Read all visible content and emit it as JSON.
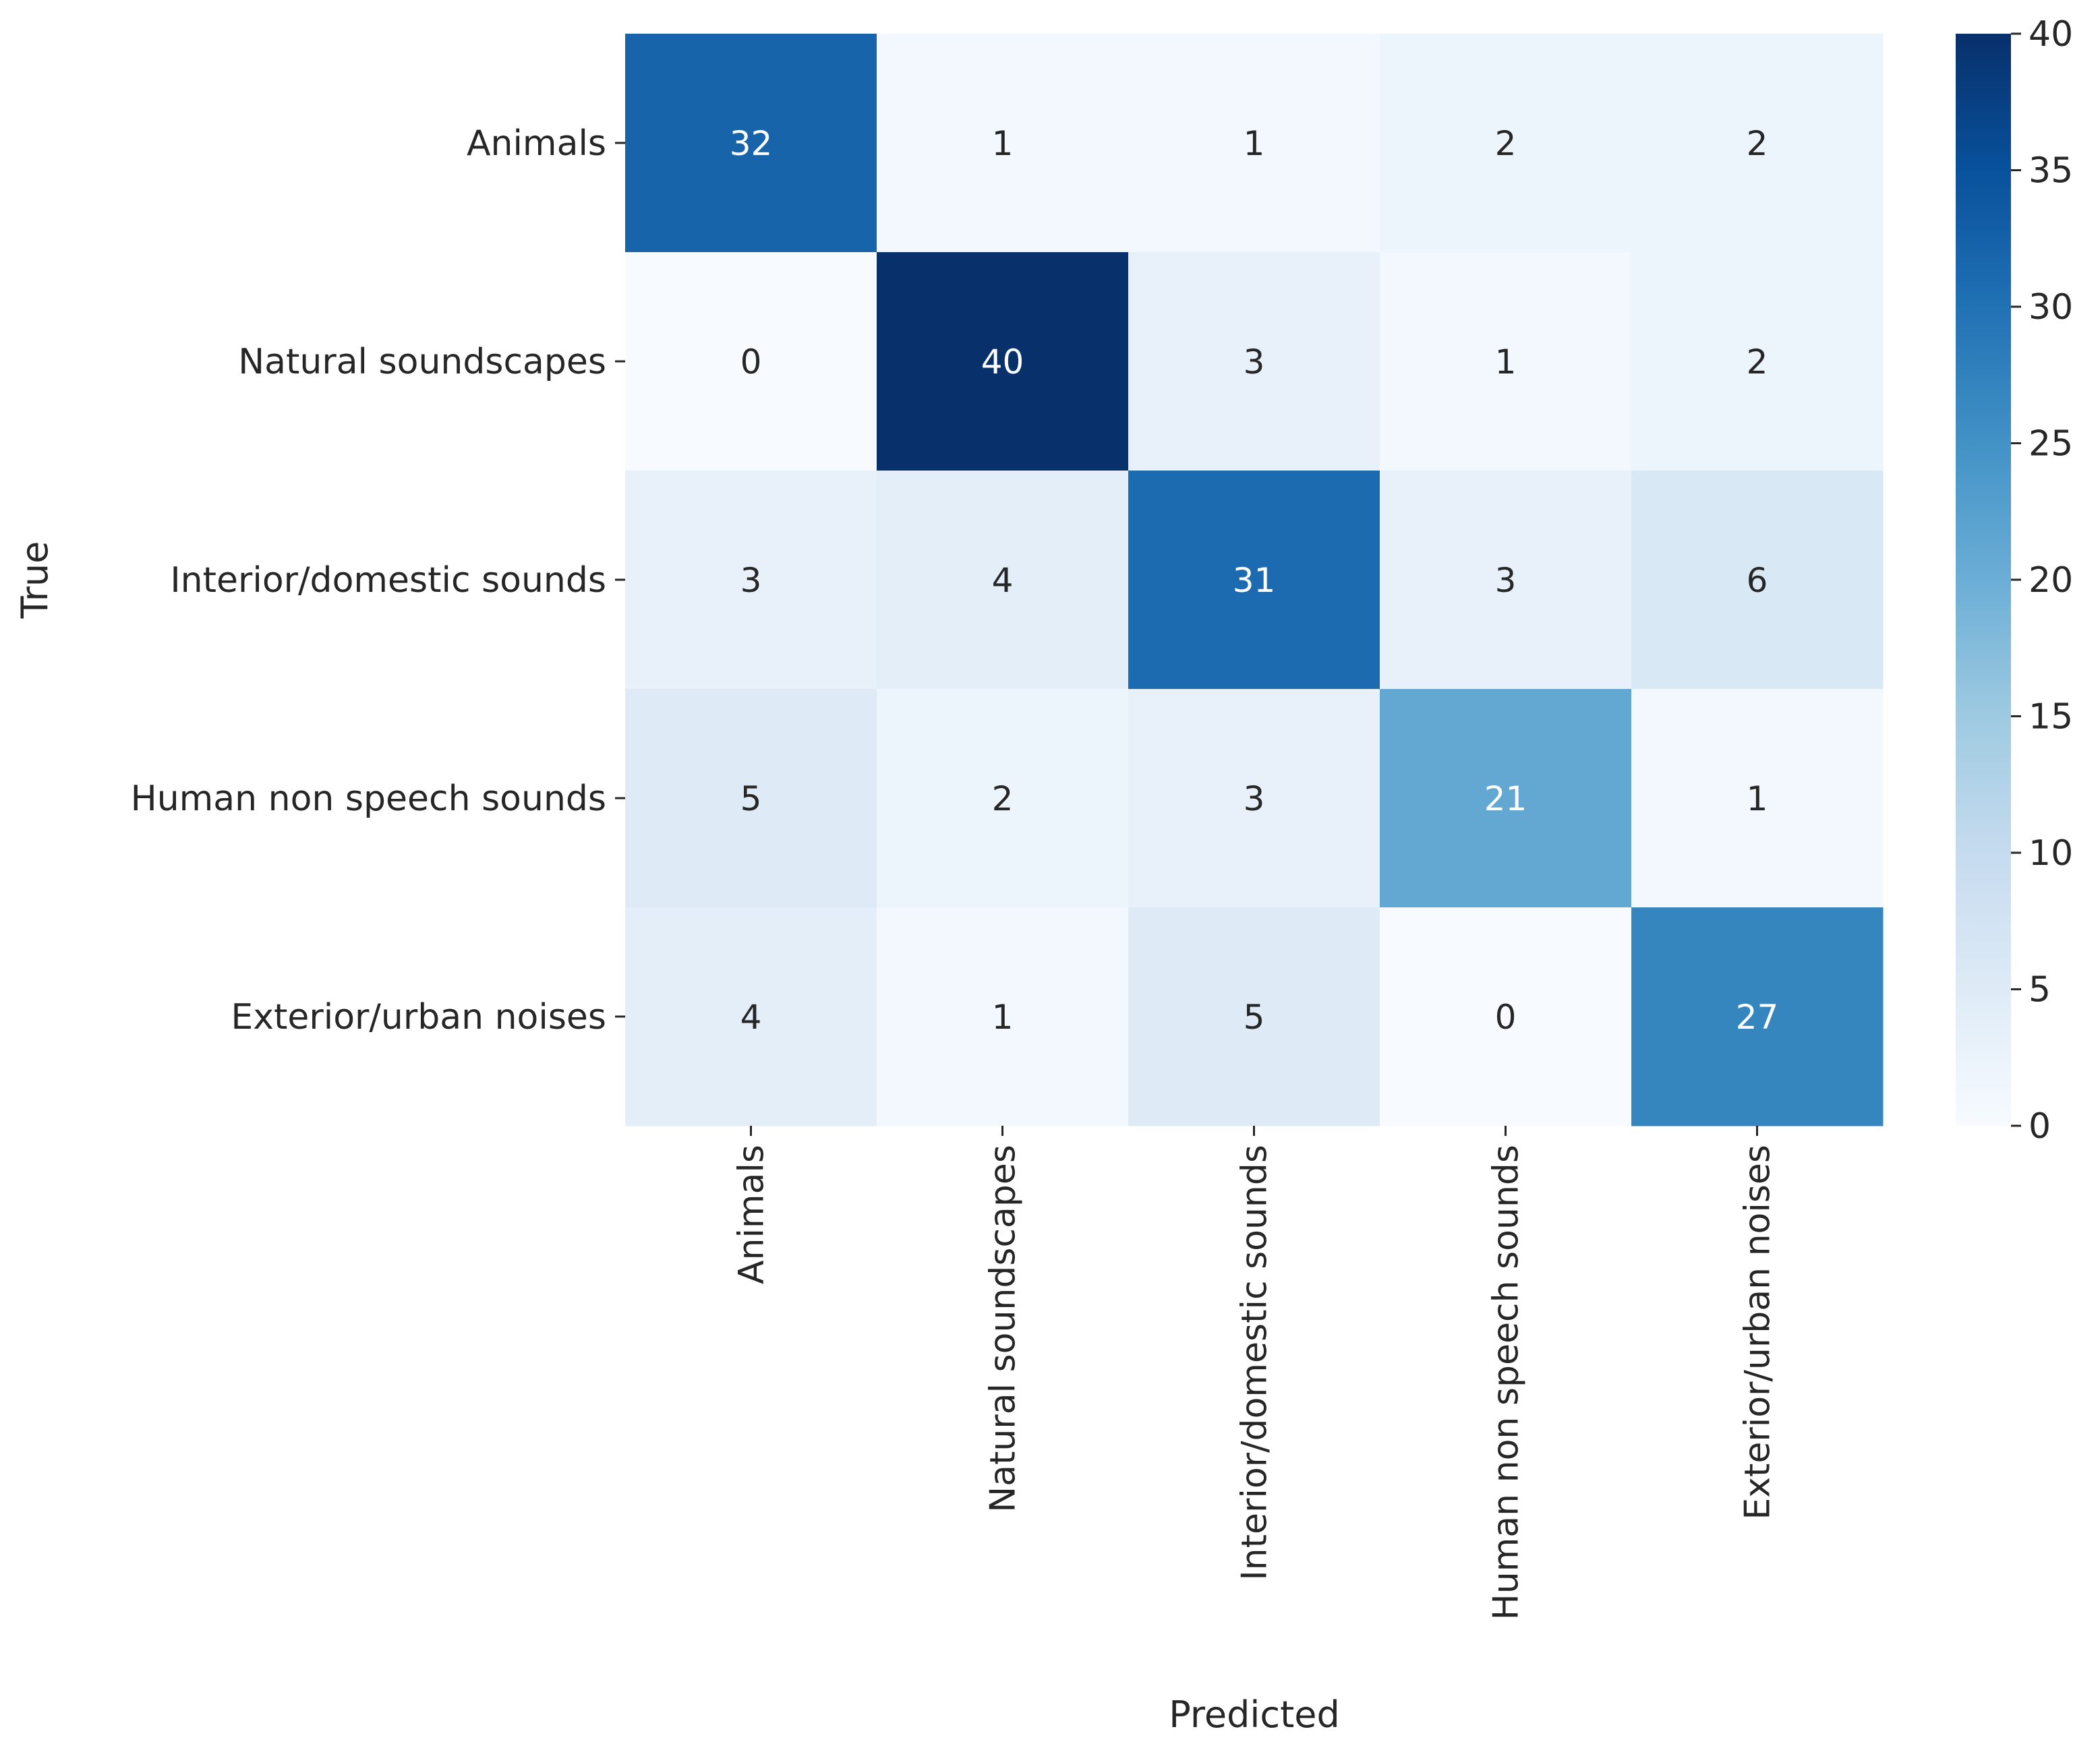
{
  "chart_data": {
    "type": "heatmap",
    "title": "",
    "xlabel": "Predicted",
    "ylabel": "True",
    "rows": [
      "Animals",
      "Natural soundscapes",
      "Interior/domestic sounds",
      "Human non speech sounds",
      "Exterior/urban noises"
    ],
    "columns": [
      "Animals",
      "Natural soundscapes",
      "Interior/domestic sounds",
      "Human non speech sounds",
      "Exterior/urban noises"
    ],
    "values": [
      [
        32,
        1,
        1,
        2,
        2
      ],
      [
        0,
        40,
        3,
        1,
        2
      ],
      [
        3,
        4,
        31,
        3,
        6
      ],
      [
        5,
        2,
        3,
        21,
        1
      ],
      [
        4,
        1,
        5,
        0,
        27
      ]
    ],
    "colormap": "Blues",
    "vmin": 0,
    "vmax": 40,
    "colorbar_ticks": [
      0,
      5,
      10,
      15,
      20,
      25,
      30,
      35,
      40
    ],
    "colorbar_tick_labels": [
      "0",
      "5",
      "10",
      "15",
      "20",
      "25",
      "30",
      "35",
      "40"
    ],
    "annotation_light_color": "#ffffff",
    "annotation_dark_color": "#262626",
    "grid": false
  }
}
